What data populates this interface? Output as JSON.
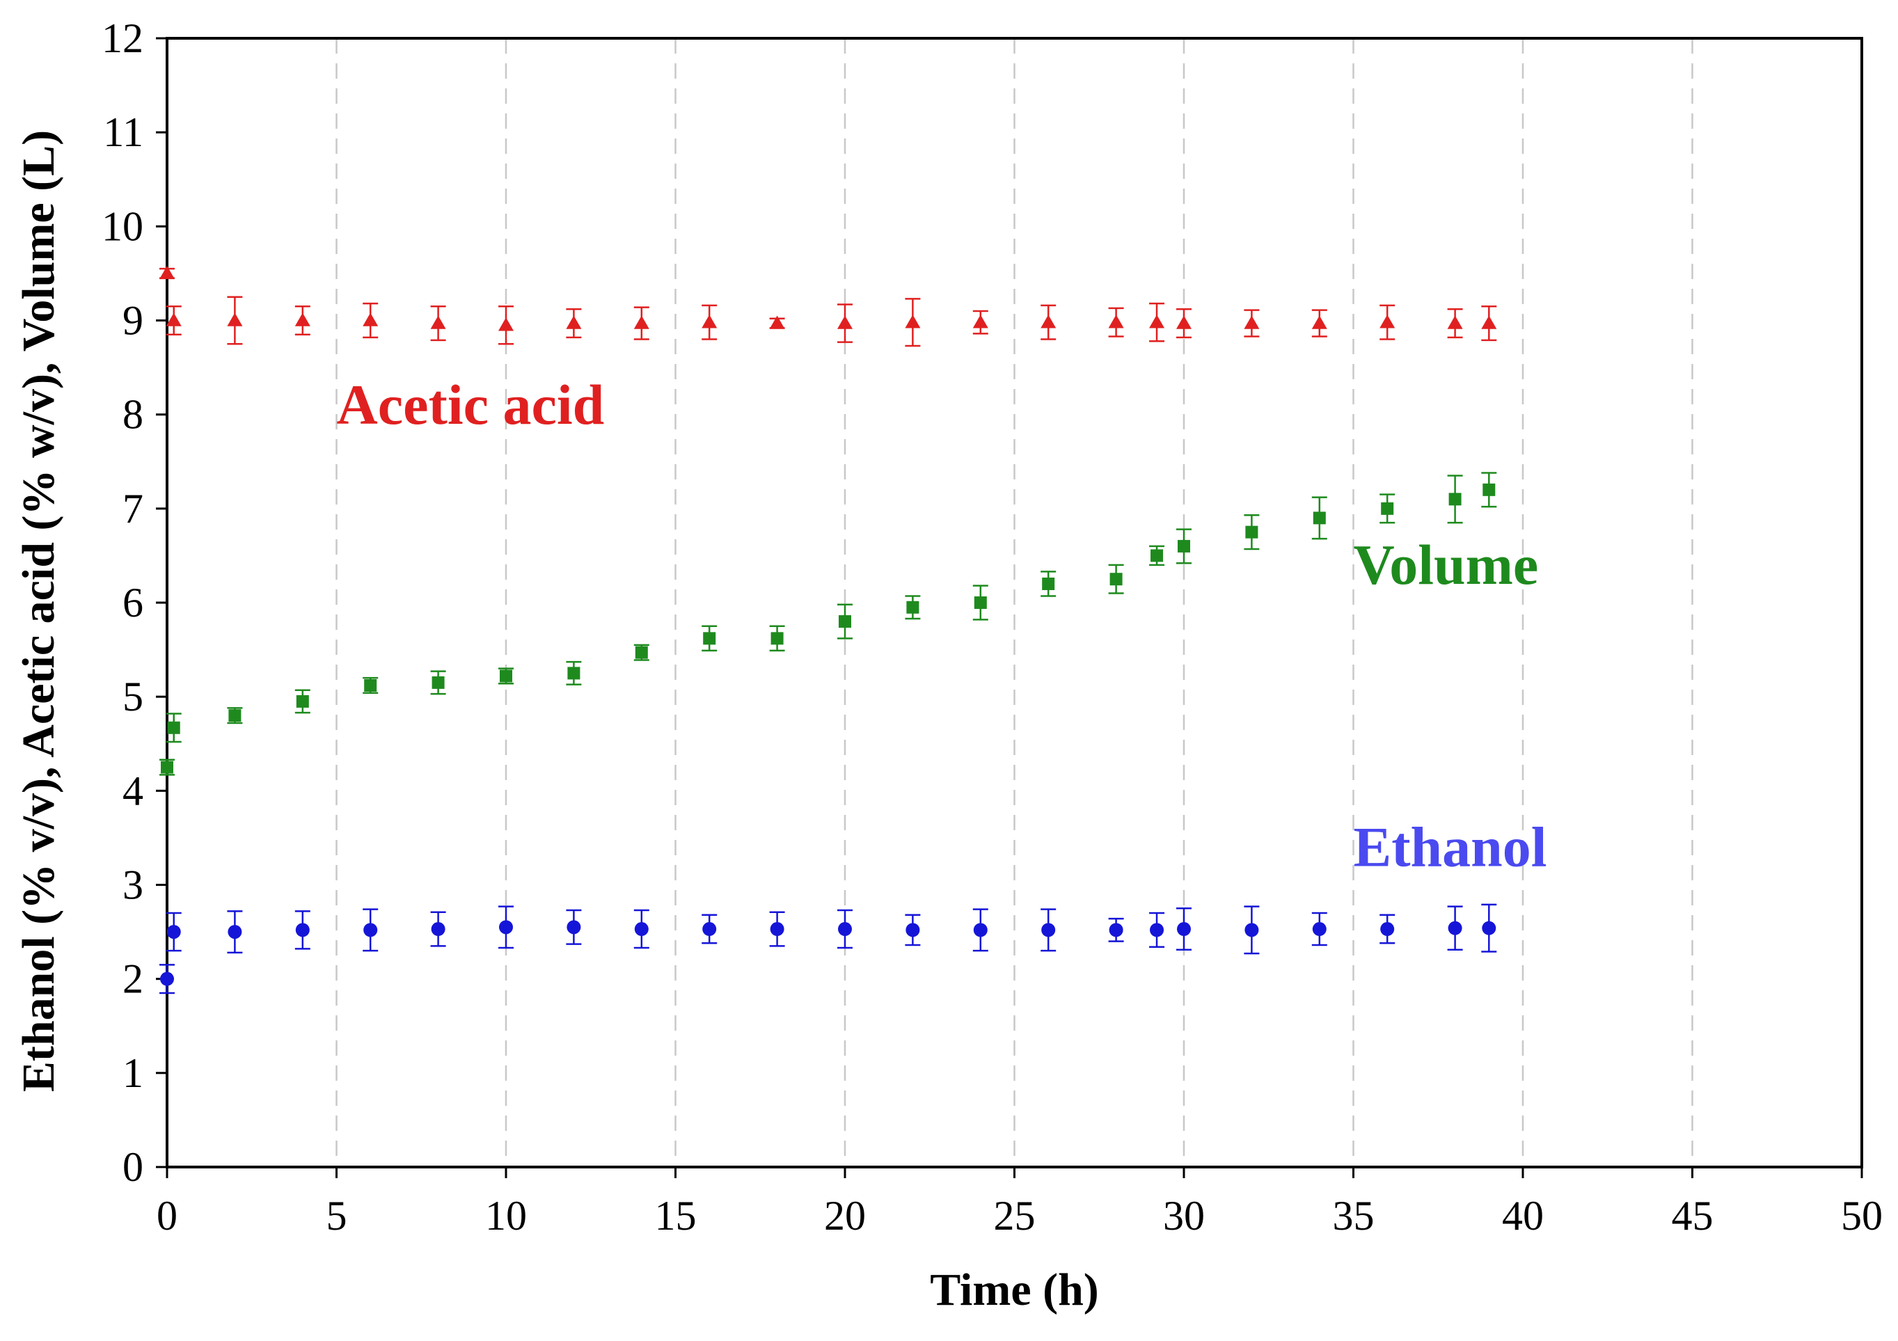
{
  "chart_data": {
    "type": "scatter",
    "title": "",
    "xlabel": "Time (h)",
    "ylabel": "Ethanol (% v/v), Acetic acid (% w/v), Volume (L)",
    "xlim": [
      0,
      50
    ],
    "ylim": [
      0,
      12
    ],
    "xticks": [
      0,
      5,
      10,
      15,
      20,
      25,
      30,
      35,
      40,
      45,
      50
    ],
    "yticks": [
      0,
      1,
      2,
      3,
      4,
      5,
      6,
      7,
      8,
      9,
      10,
      11,
      12
    ],
    "vertical_gridlines": "dashed at x ticks",
    "series": [
      {
        "name": "Acetic acid",
        "label_text": "Acetic acid",
        "color": "#e02020",
        "marker": "triangle",
        "x": [
          0,
          0.2,
          2,
          4,
          6,
          8,
          10,
          12,
          14,
          16,
          18,
          20,
          22,
          24,
          26,
          28,
          29.2,
          30,
          32,
          34,
          36,
          38,
          39
        ],
        "y": [
          9.5,
          9.0,
          9.0,
          9.0,
          9.0,
          8.97,
          8.95,
          8.97,
          8.97,
          8.98,
          8.97,
          8.97,
          8.98,
          8.98,
          8.98,
          8.98,
          8.98,
          8.97,
          8.97,
          8.97,
          8.98,
          8.97,
          8.97
        ],
        "err": [
          0.05,
          0.15,
          0.25,
          0.15,
          0.18,
          0.18,
          0.2,
          0.15,
          0.17,
          0.18,
          0.05,
          0.2,
          0.25,
          0.12,
          0.18,
          0.15,
          0.2,
          0.15,
          0.14,
          0.14,
          0.18,
          0.15,
          0.18
        ]
      },
      {
        "name": "Volume",
        "label_text": "Volume",
        "color": "#1e8a1e",
        "marker": "square",
        "x": [
          0,
          0.2,
          2,
          4,
          6,
          8,
          10,
          12,
          14,
          16,
          18,
          20,
          22,
          24,
          26,
          28,
          29.2,
          30,
          32,
          34,
          36,
          38,
          39
        ],
        "y": [
          4.25,
          4.67,
          4.8,
          4.95,
          5.12,
          5.15,
          5.22,
          5.25,
          5.47,
          5.62,
          5.62,
          5.8,
          5.95,
          6.0,
          6.2,
          6.25,
          6.5,
          6.6,
          6.75,
          6.9,
          7.0,
          7.1,
          7.2
        ],
        "err": [
          0.08,
          0.15,
          0.08,
          0.12,
          0.08,
          0.12,
          0.08,
          0.12,
          0.08,
          0.13,
          0.13,
          0.18,
          0.12,
          0.18,
          0.13,
          0.15,
          0.1,
          0.18,
          0.18,
          0.22,
          0.15,
          0.25,
          0.18
        ]
      },
      {
        "name": "Ethanol",
        "label_text": "Ethanol",
        "color": "#1515d8",
        "label_color": "#4a4af0",
        "marker": "circle",
        "x": [
          0,
          0.2,
          2,
          4,
          6,
          8,
          10,
          12,
          14,
          16,
          18,
          20,
          22,
          24,
          26,
          28,
          29.2,
          30,
          32,
          34,
          36,
          38,
          39
        ],
        "y": [
          2.0,
          2.5,
          2.5,
          2.52,
          2.52,
          2.53,
          2.55,
          2.55,
          2.53,
          2.53,
          2.53,
          2.53,
          2.52,
          2.52,
          2.52,
          2.52,
          2.52,
          2.53,
          2.52,
          2.53,
          2.53,
          2.54,
          2.54
        ],
        "err": [
          0.15,
          0.2,
          0.22,
          0.2,
          0.22,
          0.18,
          0.22,
          0.18,
          0.2,
          0.15,
          0.18,
          0.2,
          0.16,
          0.22,
          0.22,
          0.12,
          0.18,
          0.22,
          0.25,
          0.17,
          0.15,
          0.23,
          0.25
        ]
      }
    ]
  }
}
